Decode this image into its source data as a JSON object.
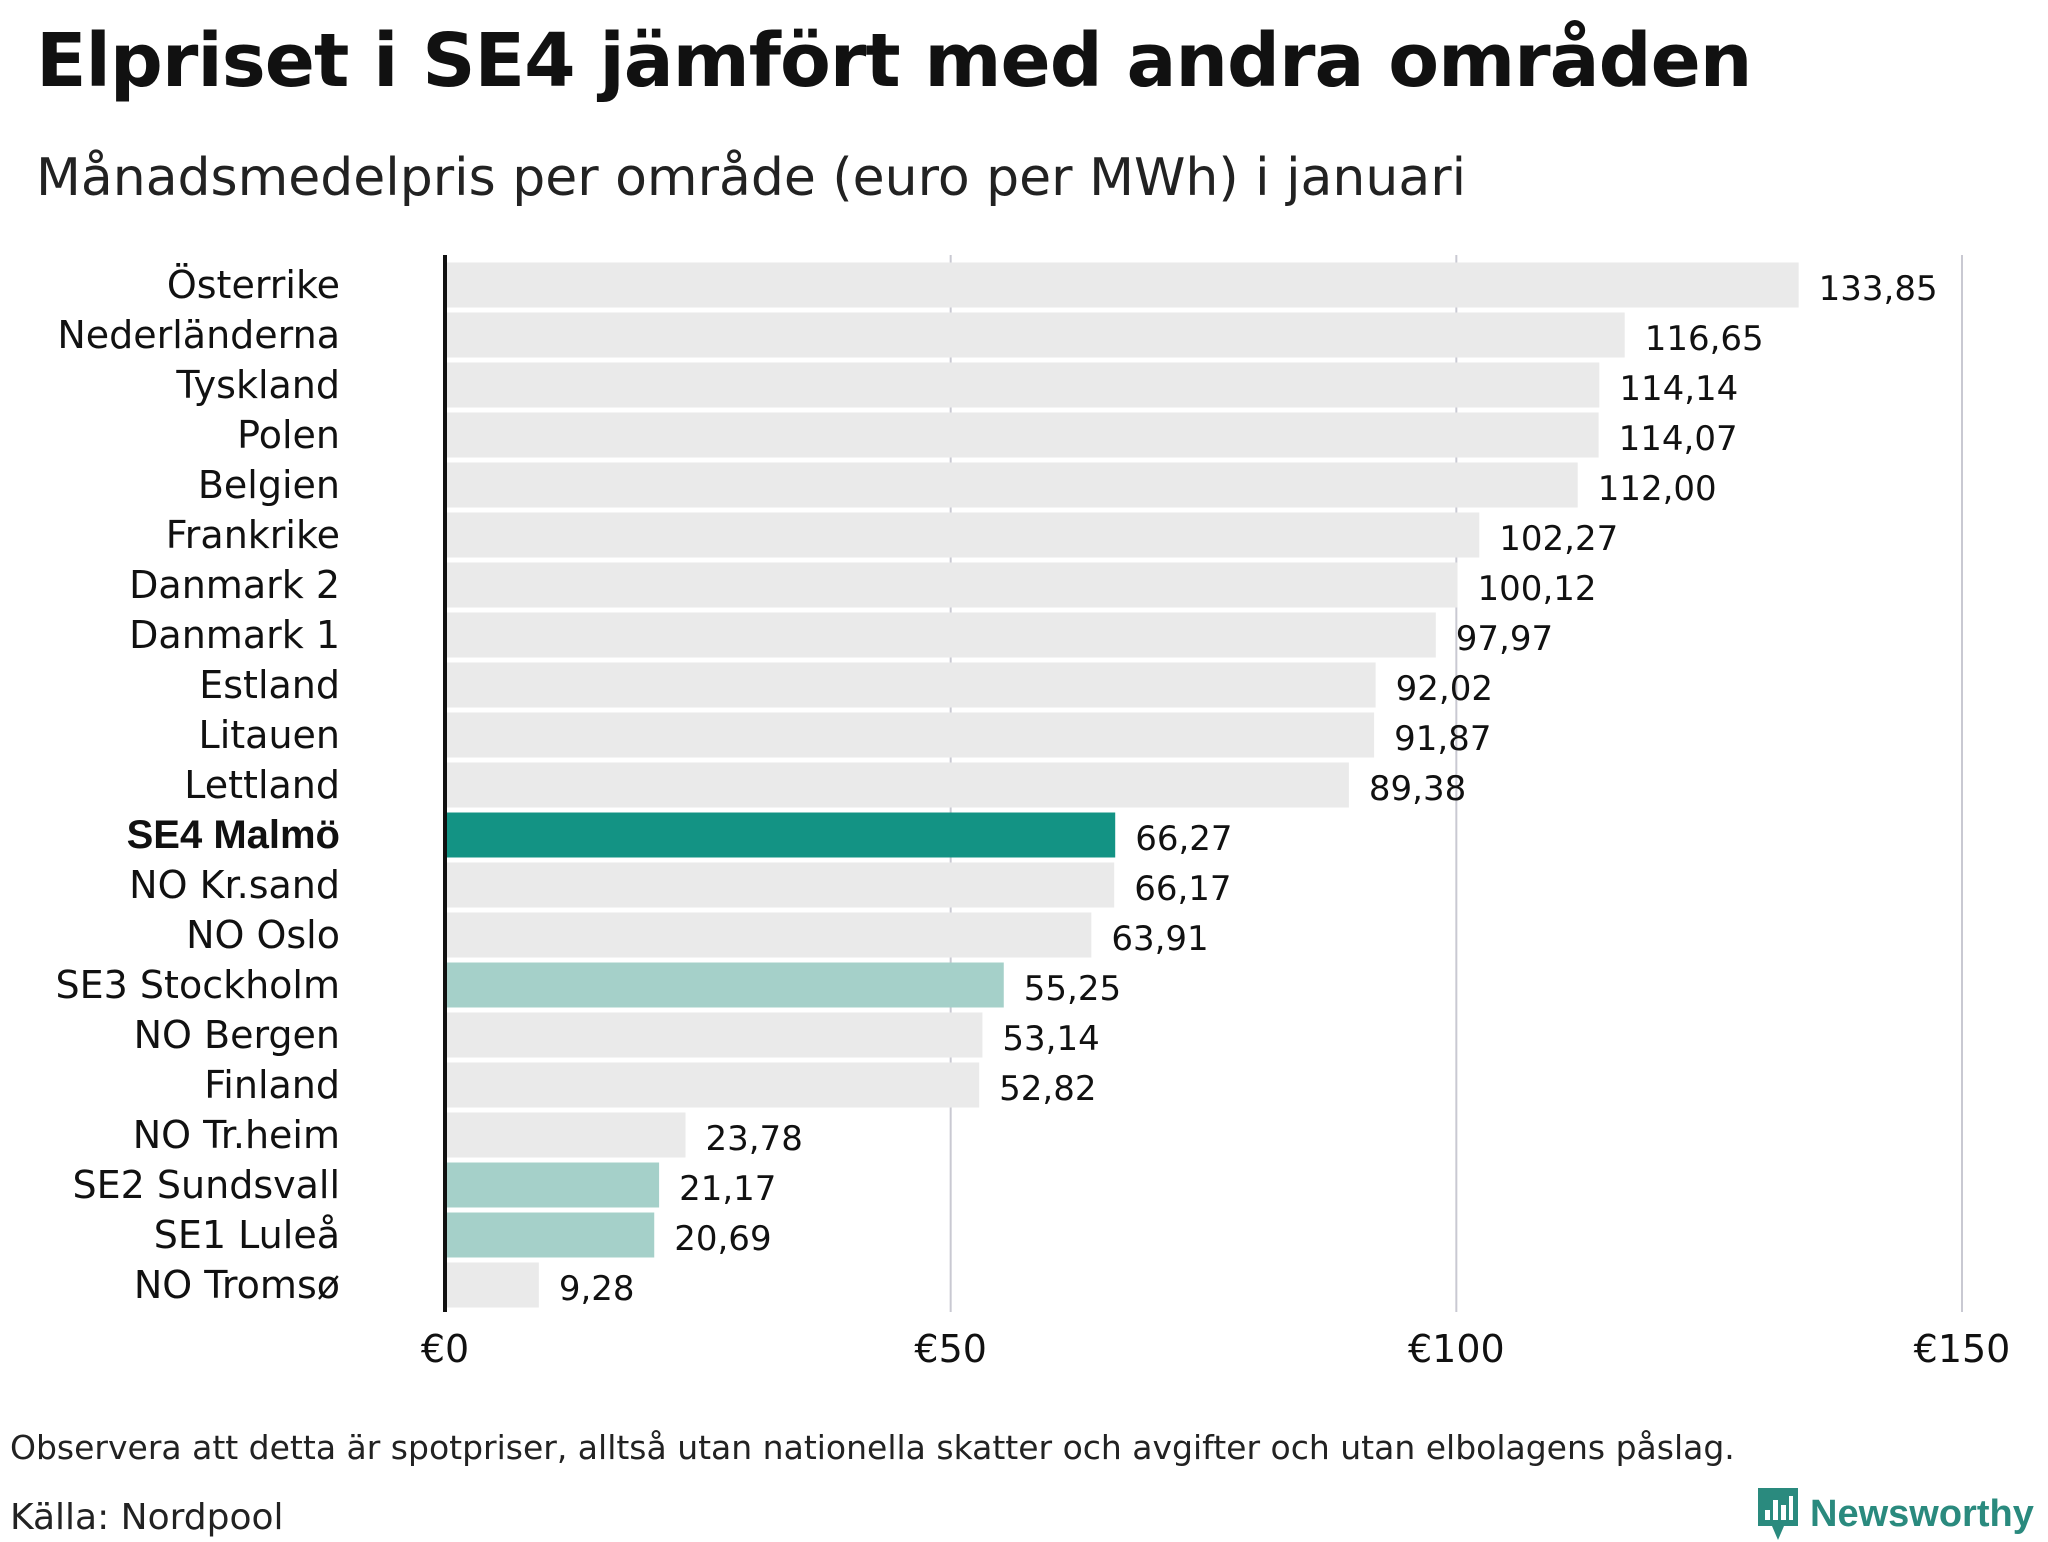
{
  "header": {
    "title": "Elpriset i SE4 jämfört med andra områden",
    "subtitle": "Månadsmedelpris per område (euro per MWh) i januari"
  },
  "footer": {
    "note": "Observera att detta är spotpriser, alltså utan nationella skatter och avgifter och utan elbolagens påslag.",
    "source": "Källa: Nordpool",
    "brand": "Newsworthy"
  },
  "colors": {
    "default_bar": "#eaeaea",
    "highlight_bar": "#139384",
    "swedish_bar": "#a5d0c9",
    "grid": "#c9c9d2",
    "axis": "#111111",
    "brand": "#2a8a7e"
  },
  "chart_data": {
    "type": "bar",
    "orientation": "horizontal",
    "title": "Elpriset i SE4 jämfört med andra områden",
    "subtitle": "Månadsmedelpris per område (euro per MWh) i januari",
    "xlim": [
      0,
      150
    ],
    "xticks": [
      0,
      50,
      100,
      150
    ],
    "xtick_labels": [
      "€0",
      "€50",
      "€100",
      "€150"
    ],
    "grid": "vertical",
    "categories": [
      "Österrike",
      "Nederländerna",
      "Tyskland",
      "Polen",
      "Belgien",
      "Frankrike",
      "Danmark  2",
      "Danmark  1",
      "Estland",
      "Litauen",
      "Lettland",
      "SE4 Malmö",
      "NO Kr.sand",
      "NO Oslo",
      "SE3  Stockholm",
      "NO Bergen",
      "Finland",
      "NO Tr.heim",
      "SE2  Sundsvall",
      "SE1  Luleå",
      "NO Tromsø"
    ],
    "values": [
      133.85,
      116.65,
      114.14,
      114.07,
      112.0,
      102.27,
      100.12,
      97.97,
      92.02,
      91.87,
      89.38,
      66.27,
      66.17,
      63.91,
      55.25,
      53.14,
      52.82,
      23.78,
      21.17,
      20.69,
      9.28
    ],
    "value_labels": [
      "133,85",
      "116,65",
      "114,14",
      "114,07",
      "112,00",
      "102,27",
      "100,12",
      "97,97",
      "92,02",
      "91,87",
      "89,38",
      "66,27",
      "66,17",
      "63,91",
      "55,25",
      "53,14",
      "52,82",
      "23,78",
      "21,17",
      "20,69",
      "9,28"
    ],
    "highlight": [
      "default",
      "default",
      "default",
      "default",
      "default",
      "default",
      "default",
      "default",
      "default",
      "default",
      "default",
      "primary",
      "default",
      "default",
      "swedish",
      "default",
      "default",
      "default",
      "swedish",
      "swedish",
      "default"
    ]
  }
}
